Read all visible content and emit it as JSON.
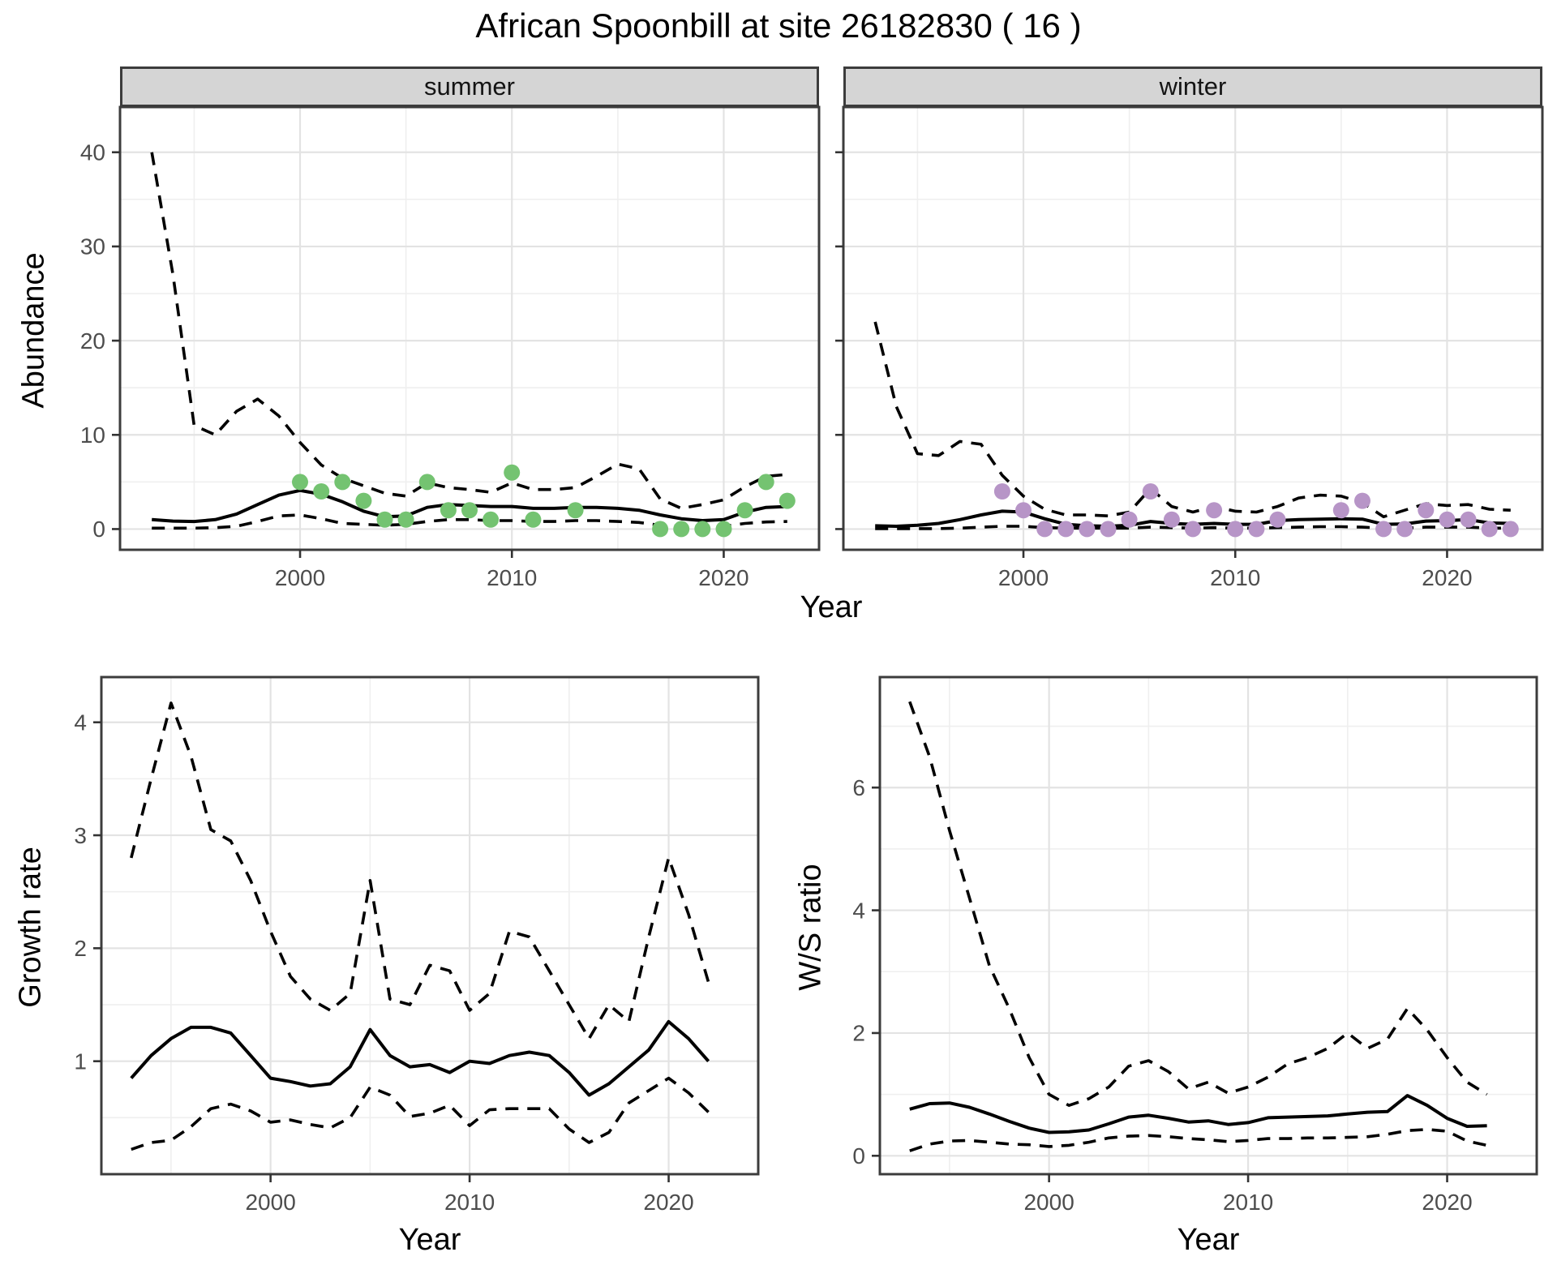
{
  "title": "African Spoonbill at site 26182830 ( 16 )",
  "colors": {
    "summer_points": "#74c371",
    "winter_points": "#b795c7",
    "strip_background": "#d5d5d5",
    "panel_border": "#3c3c3c",
    "gridline": "#e3e3e3",
    "line": "#000000",
    "tick_text": "#4d4d4d"
  },
  "chart_data": [
    {
      "id": "abundance-summer",
      "type": "line",
      "facet_label": "summer",
      "ylabel": "Abundance",
      "xlabel": "Year",
      "x_domain": [
        1991.5,
        2024.5
      ],
      "y_domain": [
        -2.2,
        44.8
      ],
      "x_ticks": [
        2000,
        2010,
        2020
      ],
      "y_ticks": [
        0,
        10,
        20,
        30,
        40
      ],
      "show_y_tick_labels": true,
      "series": [
        {
          "name": "upper-ci",
          "style": "dashed",
          "x": [
            1993,
            1994,
            1995,
            1996,
            1997,
            1998,
            1999,
            2000,
            2001,
            2002,
            2003,
            2004,
            2005,
            2006,
            2007,
            2008,
            2009,
            2010,
            2011,
            2012,
            2013,
            2014,
            2015,
            2016,
            2017,
            2018,
            2019,
            2020,
            2021,
            2022,
            2023
          ],
          "y": [
            40,
            27,
            11,
            10,
            12.5,
            13.8,
            12,
            9.2,
            6.8,
            5.4,
            4.6,
            3.8,
            3.5,
            4.9,
            4.4,
            4.2,
            3.9,
            4.9,
            4.2,
            4.2,
            4.4,
            5.6,
            6.9,
            6.4,
            3.2,
            2.2,
            2.6,
            3.1,
            4.5,
            5.6,
            5.8
          ]
        },
        {
          "name": "trend",
          "style": "solid",
          "x": [
            1993,
            1994,
            1995,
            1996,
            1997,
            1998,
            1999,
            2000,
            2001,
            2002,
            2003,
            2004,
            2005,
            2006,
            2007,
            2008,
            2009,
            2010,
            2011,
            2012,
            2013,
            2014,
            2015,
            2016,
            2017,
            2018,
            2019,
            2020,
            2021,
            2022,
            2023
          ],
          "y": [
            1.0,
            0.85,
            0.8,
            1.0,
            1.6,
            2.6,
            3.6,
            4.1,
            3.7,
            2.9,
            1.9,
            1.3,
            1.4,
            2.3,
            2.6,
            2.5,
            2.4,
            2.4,
            2.2,
            2.2,
            2.3,
            2.3,
            2.2,
            2.0,
            1.5,
            1.1,
            0.9,
            1.0,
            1.8,
            2.3,
            2.4
          ]
        },
        {
          "name": "lower-ci",
          "style": "dashed",
          "x": [
            1993,
            1994,
            1995,
            1996,
            1997,
            1998,
            1999,
            2000,
            2001,
            2002,
            2003,
            2004,
            2005,
            2006,
            2007,
            2008,
            2009,
            2010,
            2011,
            2012,
            2013,
            2014,
            2015,
            2016,
            2017,
            2018,
            2019,
            2020,
            2021,
            2022,
            2023
          ],
          "y": [
            0.1,
            0.1,
            0.1,
            0.15,
            0.3,
            0.8,
            1.4,
            1.5,
            1.1,
            0.6,
            0.5,
            0.4,
            0.5,
            0.8,
            1.0,
            1.0,
            0.9,
            0.9,
            0.8,
            0.8,
            0.9,
            0.9,
            0.8,
            0.7,
            0.4,
            0.3,
            0.25,
            0.3,
            0.6,
            0.75,
            0.8
          ]
        }
      ],
      "points": {
        "name": "summer-counts",
        "color": "#74c371",
        "x": [
          2000,
          2001,
          2002,
          2003,
          2004,
          2005,
          2006,
          2007,
          2008,
          2009,
          2010,
          2011,
          2013,
          2017,
          2018,
          2019,
          2020,
          2021,
          2022,
          2023
        ],
        "y": [
          5,
          4,
          5,
          3,
          1,
          1,
          5,
          2,
          2,
          1,
          6,
          1,
          2,
          0,
          0,
          0,
          0,
          2,
          5,
          3
        ]
      }
    },
    {
      "id": "abundance-winter",
      "type": "line",
      "facet_label": "winter",
      "ylabel": "",
      "xlabel": "Year",
      "x_domain": [
        1991.5,
        2024.5
      ],
      "y_domain": [
        -2.2,
        44.8
      ],
      "x_ticks": [
        2000,
        2010,
        2020
      ],
      "y_ticks": [
        0,
        10,
        20,
        30,
        40
      ],
      "show_y_tick_labels": false,
      "series": [
        {
          "name": "upper-ci",
          "style": "dashed",
          "x": [
            1993,
            1994,
            1995,
            1996,
            1997,
            1998,
            1999,
            2000,
            2001,
            2002,
            2003,
            2004,
            2005,
            2006,
            2007,
            2008,
            2009,
            2010,
            2011,
            2012,
            2013,
            2014,
            2015,
            2016,
            2017,
            2018,
            2019,
            2020,
            2021,
            2022,
            2023
          ],
          "y": [
            22,
            13,
            8,
            7.8,
            9.3,
            9.0,
            5.7,
            3.5,
            2.1,
            1.5,
            1.5,
            1.4,
            1.8,
            4.3,
            2.4,
            1.8,
            2.4,
            1.9,
            1.8,
            2.4,
            3.3,
            3.6,
            3.5,
            2.8,
            1.3,
            2.0,
            2.7,
            2.5,
            2.6,
            2.1,
            2.0
          ]
        },
        {
          "name": "trend",
          "style": "solid",
          "x": [
            1993,
            1994,
            1995,
            1996,
            1997,
            1998,
            1999,
            2000,
            2001,
            2002,
            2003,
            2004,
            2005,
            2006,
            2007,
            2008,
            2009,
            2010,
            2011,
            2012,
            2013,
            2014,
            2015,
            2016,
            2017,
            2018,
            2019,
            2020,
            2021,
            2022,
            2023
          ],
          "y": [
            0.35,
            0.3,
            0.4,
            0.6,
            1.0,
            1.5,
            1.9,
            1.8,
            1.1,
            0.5,
            0.35,
            0.3,
            0.4,
            0.8,
            0.6,
            0.5,
            0.6,
            0.5,
            0.5,
            0.9,
            1.0,
            1.05,
            1.1,
            1.05,
            0.5,
            0.55,
            0.85,
            0.9,
            1.0,
            0.65,
            0.6
          ]
        },
        {
          "name": "lower-ci",
          "style": "dashed",
          "x": [
            1993,
            1994,
            1995,
            1996,
            1997,
            1998,
            1999,
            2000,
            2001,
            2002,
            2003,
            2004,
            2005,
            2006,
            2007,
            2008,
            2009,
            2010,
            2011,
            2012,
            2013,
            2014,
            2015,
            2016,
            2017,
            2018,
            2019,
            2020,
            2021,
            2022,
            2023
          ],
          "y": [
            0.05,
            0.05,
            0.05,
            0.05,
            0.1,
            0.2,
            0.3,
            0.3,
            0.15,
            0.1,
            0.1,
            0.1,
            0.1,
            0.2,
            0.15,
            0.1,
            0.15,
            0.1,
            0.1,
            0.15,
            0.2,
            0.25,
            0.25,
            0.2,
            0.1,
            0.1,
            0.2,
            0.2,
            0.2,
            0.1,
            0.1
          ]
        }
      ],
      "points": {
        "name": "winter-counts",
        "color": "#b795c7",
        "x": [
          1999,
          2000,
          2001,
          2002,
          2003,
          2004,
          2005,
          2006,
          2007,
          2008,
          2009,
          2010,
          2011,
          2012,
          2015,
          2016,
          2017,
          2018,
          2019,
          2020,
          2021,
          2022,
          2023
        ],
        "y": [
          4,
          2,
          0,
          0,
          0,
          0,
          1,
          4,
          1,
          0,
          2,
          0,
          0,
          1,
          2,
          3,
          0,
          0,
          2,
          1,
          1,
          0,
          0
        ]
      }
    },
    {
      "id": "growth-rate",
      "type": "line",
      "facet_label": "",
      "ylabel": "Growth rate",
      "xlabel": "Year",
      "x_domain": [
        1991.5,
        2024.5
      ],
      "y_domain": [
        0.0,
        4.4
      ],
      "x_ticks": [
        2000,
        2010,
        2020
      ],
      "y_ticks": [
        1,
        2,
        3,
        4
      ],
      "show_y_tick_labels": true,
      "series": [
        {
          "name": "upper-ci",
          "style": "dashed",
          "x": [
            1993,
            1994,
            1995,
            1996,
            1997,
            1998,
            1999,
            2000,
            2001,
            2002,
            2003,
            2004,
            2005,
            2006,
            2007,
            2008,
            2009,
            2010,
            2011,
            2012,
            2013,
            2014,
            2015,
            2016,
            2017,
            2018,
            2019,
            2020,
            2021,
            2022
          ],
          "y": [
            2.8,
            3.5,
            4.17,
            3.7,
            3.05,
            2.95,
            2.6,
            2.15,
            1.75,
            1.55,
            1.45,
            1.6,
            2.6,
            1.55,
            1.5,
            1.85,
            1.8,
            1.45,
            1.6,
            2.15,
            2.1,
            1.8,
            1.5,
            1.2,
            1.5,
            1.35,
            2.1,
            2.8,
            2.3,
            1.7
          ]
        },
        {
          "name": "trend",
          "style": "solid",
          "x": [
            1993,
            1994,
            1995,
            1996,
            1997,
            1998,
            1999,
            2000,
            2001,
            2002,
            2003,
            2004,
            2005,
            2006,
            2007,
            2008,
            2009,
            2010,
            2011,
            2012,
            2013,
            2014,
            2015,
            2016,
            2017,
            2018,
            2019,
            2020,
            2021,
            2022
          ],
          "y": [
            0.85,
            1.05,
            1.2,
            1.3,
            1.3,
            1.25,
            1.05,
            0.85,
            0.82,
            0.78,
            0.8,
            0.95,
            1.28,
            1.05,
            0.95,
            0.97,
            0.9,
            1.0,
            0.98,
            1.05,
            1.08,
            1.05,
            0.9,
            0.7,
            0.8,
            0.95,
            1.1,
            1.35,
            1.2,
            1.0
          ]
        },
        {
          "name": "lower-ci",
          "style": "dashed",
          "x": [
            1993,
            1994,
            1995,
            1996,
            1997,
            1998,
            1999,
            2000,
            2001,
            2002,
            2003,
            2004,
            2005,
            2006,
            2007,
            2008,
            2009,
            2010,
            2011,
            2012,
            2013,
            2014,
            2015,
            2016,
            2017,
            2018,
            2019,
            2020,
            2021,
            2022
          ],
          "y": [
            0.22,
            0.28,
            0.3,
            0.42,
            0.58,
            0.62,
            0.56,
            0.46,
            0.48,
            0.44,
            0.41,
            0.5,
            0.77,
            0.7,
            0.51,
            0.54,
            0.61,
            0.43,
            0.57,
            0.58,
            0.58,
            0.58,
            0.4,
            0.28,
            0.37,
            0.63,
            0.74,
            0.85,
            0.72,
            0.55
          ]
        }
      ],
      "points": null
    },
    {
      "id": "ws-ratio",
      "type": "line",
      "facet_label": "",
      "ylabel": "W/S ratio",
      "xlabel": "Year",
      "x_domain": [
        1991.5,
        2024.5
      ],
      "y_domain": [
        -0.3,
        7.8
      ],
      "x_ticks": [
        2000,
        2010,
        2020
      ],
      "y_ticks": [
        0,
        2,
        4,
        6
      ],
      "show_y_tick_labels": true,
      "series": [
        {
          "name": "upper-ci",
          "style": "dashed",
          "x": [
            1993,
            1994,
            1995,
            1996,
            1997,
            1998,
            1999,
            2000,
            2001,
            2002,
            2003,
            2004,
            2005,
            2006,
            2007,
            2008,
            2009,
            2010,
            2011,
            2012,
            2013,
            2014,
            2015,
            2016,
            2017,
            2018,
            2019,
            2020,
            2021,
            2022
          ],
          "y": [
            7.4,
            6.5,
            5.3,
            4.2,
            3.1,
            2.4,
            1.6,
            1.0,
            0.82,
            0.93,
            1.12,
            1.46,
            1.55,
            1.37,
            1.09,
            1.2,
            1.02,
            1.12,
            1.28,
            1.5,
            1.6,
            1.75,
            2.0,
            1.75,
            1.9,
            2.4,
            2.05,
            1.6,
            1.2,
            1.0
          ]
        },
        {
          "name": "trend",
          "style": "solid",
          "x": [
            1993,
            1994,
            1995,
            1996,
            1997,
            1998,
            1999,
            2000,
            2001,
            2002,
            2003,
            2004,
            2005,
            2006,
            2007,
            2008,
            2009,
            2010,
            2011,
            2012,
            2013,
            2014,
            2015,
            2016,
            2017,
            2018,
            2019,
            2020,
            2021,
            2022
          ],
          "y": [
            0.76,
            0.85,
            0.86,
            0.79,
            0.68,
            0.56,
            0.45,
            0.38,
            0.39,
            0.42,
            0.52,
            0.63,
            0.66,
            0.61,
            0.55,
            0.57,
            0.51,
            0.54,
            0.62,
            0.63,
            0.64,
            0.65,
            0.68,
            0.71,
            0.72,
            0.98,
            0.82,
            0.61,
            0.48,
            0.49
          ]
        },
        {
          "name": "lower-ci",
          "style": "dashed",
          "x": [
            1993,
            1994,
            1995,
            1996,
            1997,
            1998,
            1999,
            2000,
            2001,
            2002,
            2003,
            2004,
            2005,
            2006,
            2007,
            2008,
            2009,
            2010,
            2011,
            2012,
            2013,
            2014,
            2015,
            2016,
            2017,
            2018,
            2019,
            2020,
            2021,
            2022
          ],
          "y": [
            0.08,
            0.19,
            0.24,
            0.25,
            0.22,
            0.19,
            0.18,
            0.15,
            0.17,
            0.22,
            0.29,
            0.32,
            0.33,
            0.31,
            0.28,
            0.26,
            0.23,
            0.25,
            0.28,
            0.28,
            0.29,
            0.29,
            0.3,
            0.31,
            0.35,
            0.41,
            0.43,
            0.4,
            0.24,
            0.17
          ]
        }
      ],
      "points": null
    }
  ]
}
